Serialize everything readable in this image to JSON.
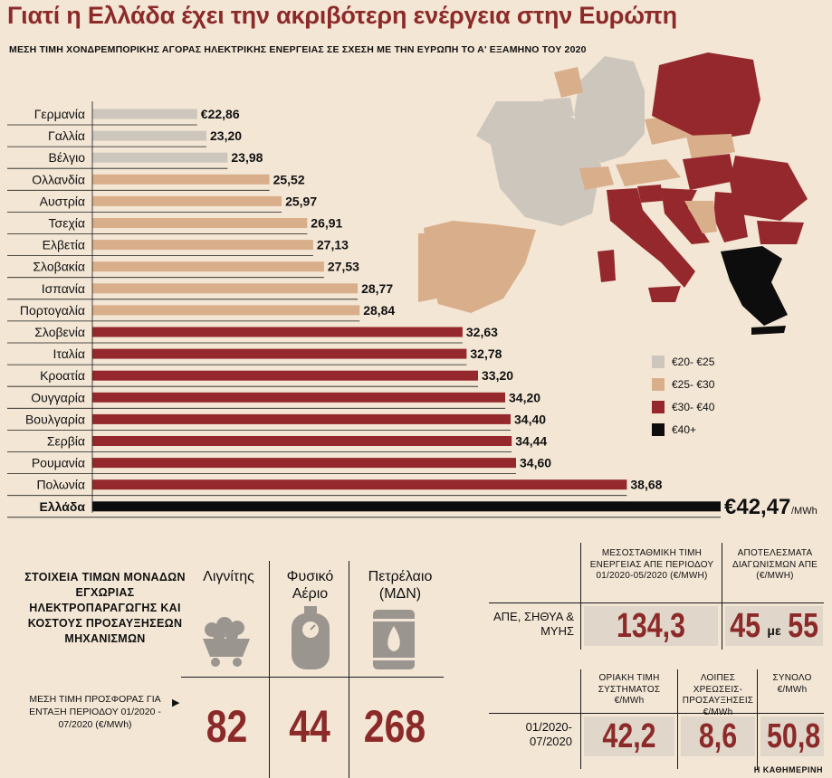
{
  "title": "Γιατί η Ελλάδα έχει την ακριβότερη ενέργεια στην Ευρώπη",
  "subtitle": "ΜΕΣΗ ΤΙΜΗ ΧΟΝΔΡΕΜΠΟΡΙΚΗΣ ΑΓΟΡΑΣ ΗΛΕΚΤΡΙΚΗΣ ΕΝΕΡΓΕΙΑΣ ΣΕ ΣΧΕΣΗ ΜΕ ΤΗΝ ΕΥΡΩΠΗ ΤΟ Α' ΕΞΑΜΗΝΟ ΤΟΥ 2020",
  "chart_data": {
    "type": "bar",
    "orientation": "horizontal",
    "title": "ΜΕΣΗ ΤΙΜΗ ΧΟΝΔΡΕΜΠΟΡΙΚΗΣ ΑΓΟΡΑΣ ΗΛΕΚΤΡΙΚΗΣ ΕΝΕΡΓΕΙΑΣ ΣΕ ΣΧΕΣΗ ΜΕ ΤΗΝ ΕΥΡΩΠΗ ΤΟ Α' ΕΞΑΜΗΝΟ ΤΟΥ 2020",
    "categories": [
      "Γερμανία",
      "Γαλλία",
      "Βέλγιο",
      "Ολλανδία",
      "Αυστρία",
      "Τσεχία",
      "Ελβετία",
      "Σλοβακία",
      "Ισπανία",
      "Πορτογαλία",
      "Σλοβενία",
      "Ιταλία",
      "Κροατία",
      "Ουγγαρία",
      "Βουλγαρία",
      "Σερβία",
      "Ρουμανία",
      "Πολωνία",
      "Ελλάδα"
    ],
    "values": [
      22.86,
      23.2,
      23.98,
      25.52,
      25.97,
      26.91,
      27.13,
      27.53,
      28.77,
      28.84,
      32.63,
      32.78,
      33.2,
      34.2,
      34.4,
      34.44,
      34.6,
      38.68,
      42.47
    ],
    "value_labels": [
      "€22,86",
      "23,20",
      "23,98",
      "25,52",
      "25,97",
      "26,91",
      "27,13",
      "27,53",
      "28,77",
      "28,84",
      "32,63",
      "32,78",
      "33,20",
      "34,20",
      "34,40",
      "34,44",
      "34,60",
      "38,68",
      "€42,47"
    ],
    "greece_unit": "/MWh",
    "bins": [
      "€20- €25",
      "€25- €30",
      "€30- €40",
      "€40+"
    ],
    "bin_colors": [
      "#cdc6bd",
      "#d9ae8a",
      "#94282c",
      "#0d0d0d"
    ]
  },
  "legend": [
    {
      "label": "€20- €25",
      "color": "#cdc6bd"
    },
    {
      "label": "€25- €30",
      "color": "#d9ae8a"
    },
    {
      "label": "€30- €40",
      "color": "#94282c"
    },
    {
      "label": "€40+",
      "color": "#0d0d0d"
    }
  ],
  "bottom": {
    "heading": "ΣΤΟΙΧΕΙΑ ΤΙΜΩΝ ΜΟΝΑΔΩΝ ΕΓΧΩΡΙΑΣ ΗΛΕΚΤΡΟΠΑΡΑΓΩΓΗΣ ΚΑΙ ΚΟΣΤΟΥΣ ΠΡΟΣΑΥΞΗΣΕΩΝ ΜΗΧΑΝΙΣΜΩΝ",
    "offer_label": "ΜΕΣΗ ΤΙΜΗ ΠΡΟΣΦΟΡΑΣ ΓΙΑ ΕΝΤΑΞΗ ΠΕΡΙΟΔΟΥ 01/2020 - 07/2020 (€/MWh)",
    "fuels": [
      {
        "name": "Λιγνίτης",
        "icon": "coal-cart-icon",
        "value": "82"
      },
      {
        "name": "Φυσικό Αέριο",
        "icon": "gas-cylinder-icon",
        "value": "44"
      },
      {
        "name": "Πετρέλαιο (ΜΔΝ)",
        "icon": "oil-barrel-icon",
        "value": "268"
      }
    ],
    "res_table": {
      "col1_head": "ΜΕΣΟΣΤΑΘΜΙΚΗ ΤΙΜΗ ΕΝΕΡΓΕΙΑΣ ΑΠΕ ΠΕΡΙΟΔΟΥ 01/2020-05/2020 (€/MWH)",
      "col2_head": "ΑΠΟΤΕΛΕΣΜΑΤΑ ΔΙΑΓΩΝΙΣΜΩΝ ΑΠΕ (€/MWH)",
      "row_label": "ΑΠΕ, ΣΗΘΥΑ & ΜΥΗΣ",
      "val1": "134,3",
      "val2a": "45",
      "val2_mid": "με",
      "val2b": "55"
    },
    "sys_table": {
      "col1_head": "ΟΡΙΑΚΗ ΤΙΜΗ ΣΥΣΤΗΜΑΤΟΣ €/MWh",
      "col2_head": "ΛΟΙΠΕΣ ΧΡΕΩΣΕΙΣ- ΠΡΟΣΑΥΞΗΣΕΙΣ €/MWh",
      "col3_head": "ΣΥΝΟΛΟ €/MWh",
      "row_label": "01/2020- 07/2020",
      "val1": "42,2",
      "val2": "8,6",
      "val3": "50,8"
    }
  },
  "source": "Η ΚΑΘΗΜΕΡΙΝΗ"
}
